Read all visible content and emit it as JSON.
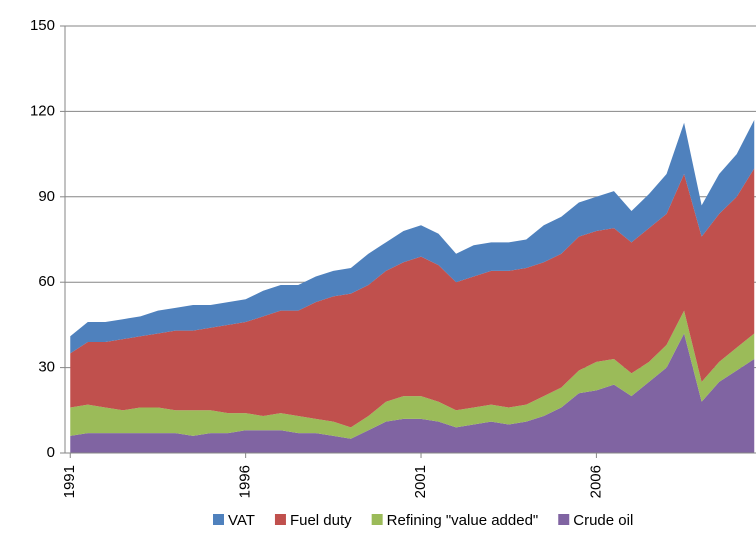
{
  "chart_data": {
    "type": "stacked_area",
    "x": [
      1991,
      1991.5,
      1992,
      1992.5,
      1993,
      1993.5,
      1994,
      1994.5,
      1995,
      1995.5,
      1996,
      1996.5,
      1997,
      1997.5,
      1998,
      1998.5,
      1999,
      1999.5,
      2000,
      2000.5,
      2001,
      2001.5,
      2002,
      2002.5,
      2003,
      2003.5,
      2004,
      2004.5,
      2005,
      2005.5,
      2006,
      2006.5,
      2007,
      2007.5,
      2008,
      2008.5,
      2009,
      2009.5,
      2010,
      2010.5
    ],
    "series": [
      {
        "name": "VAT",
        "color": "#4f81bd",
        "values": [
          6,
          7,
          7,
          7,
          7,
          8,
          8,
          9,
          8,
          8,
          8,
          9,
          9,
          9,
          9,
          9,
          9,
          11,
          10,
          11,
          11,
          11,
          10,
          11,
          10,
          10,
          10,
          13,
          13,
          12,
          12,
          13,
          11,
          12,
          14,
          18,
          11,
          14,
          15,
          17
        ]
      },
      {
        "name": "Fuel duty",
        "color": "#c0504d",
        "values": [
          19,
          22,
          23,
          25,
          25,
          26,
          28,
          28,
          29,
          31,
          32,
          35,
          36,
          37,
          41,
          44,
          47,
          46,
          46,
          47,
          49,
          48,
          45,
          46,
          47,
          48,
          48,
          47,
          47,
          47,
          46,
          46,
          46,
          47,
          46,
          48,
          51,
          52,
          53,
          58
        ]
      },
      {
        "name": "Refining \"value added\"",
        "color": "#9bbb59",
        "values": [
          10,
          10,
          9,
          8,
          9,
          9,
          8,
          9,
          8,
          7,
          6,
          5,
          6,
          6,
          5,
          5,
          4,
          5,
          7,
          8,
          8,
          7,
          6,
          6,
          6,
          6,
          6,
          7,
          7,
          8,
          10,
          9,
          8,
          7,
          8,
          8,
          7,
          7,
          8,
          9
        ]
      },
      {
        "name": "Crude oil",
        "color": "#8064a2",
        "values": [
          6,
          7,
          7,
          7,
          7,
          7,
          7,
          6,
          7,
          7,
          8,
          8,
          8,
          7,
          7,
          6,
          5,
          8,
          11,
          12,
          12,
          11,
          9,
          10,
          11,
          10,
          11,
          13,
          16,
          21,
          22,
          24,
          20,
          25,
          30,
          42,
          18,
          25,
          29,
          33
        ]
      }
    ],
    "xlim": [
      1990.85,
      2010.55
    ],
    "xticks": [
      1991,
      1996,
      2001,
      2006
    ],
    "ylim": [
      0,
      150
    ],
    "yticks": [
      0,
      30,
      60,
      90,
      120,
      150
    ],
    "grid": true
  }
}
